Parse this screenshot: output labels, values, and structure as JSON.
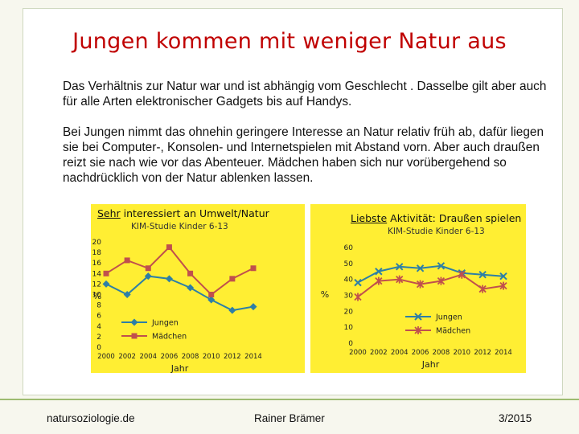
{
  "slide": {
    "title": "Jungen kommen mit weniger Natur aus",
    "paragraph1": "Das Verhältnis zur Natur war und ist abhängig vom Geschlecht . Dasselbe gilt aber auch für alle Arten elektronischer Gadgets bis auf Handys.",
    "paragraph2": "Bei Jungen nimmt das ohnehin geringere Interesse an Natur relativ früh ab, dafür liegen sie bei Computer-, Konsolen- und Internetspielen mit Abstand vorn. Aber auch draußen reizt sie nach wie vor das Abenteuer. Mädchen haben sich nur vorübergehend so nachdrücklich von der Natur ablenken lassen."
  },
  "footer": {
    "left": "natursoziologie.de",
    "center": "Rainer Brämer",
    "right": "3/2015"
  },
  "colors": {
    "title": "#c00000",
    "chart_bg": "#ffee33",
    "jungen": "#2e7fa6",
    "maedchen": "#c0504d",
    "footer_line": "#9dbb70"
  },
  "chart_data": [
    {
      "type": "line",
      "title_underlined": "Sehr",
      "title_rest": " interessiert an Umwelt/Natur",
      "subtitle": "KIM-Studie Kinder 6-13",
      "xlabel": "Jahr",
      "ylabel": "%",
      "xlim": [
        2000,
        2014
      ],
      "ylim": [
        0,
        20
      ],
      "x_ticks": [
        2000,
        2002,
        2004,
        2006,
        2008,
        2010,
        2012,
        2014
      ],
      "y_ticks": [
        0,
        2,
        4,
        6,
        8,
        10,
        12,
        14,
        16,
        18,
        20
      ],
      "legend_position": "center-left",
      "series": [
        {
          "name": "Jungen",
          "marker": "diamond",
          "x": [
            2000,
            2002,
            2004,
            2006,
            2008,
            2010,
            2012,
            2014
          ],
          "values": [
            12,
            10,
            13.5,
            13,
            11.3,
            9,
            7,
            7.7
          ]
        },
        {
          "name": "Mädchen",
          "marker": "square",
          "x": [
            2000,
            2002,
            2004,
            2006,
            2008,
            2010,
            2012,
            2014
          ],
          "values": [
            14,
            16.5,
            15,
            19,
            14,
            10,
            13,
            15
          ]
        }
      ]
    },
    {
      "type": "line",
      "title_underlined": "Liebste",
      "title_rest": " Aktivität: Draußen spielen",
      "subtitle": "KIM-Studie Kinder 6-13",
      "xlabel": "Jahr",
      "ylabel": "%",
      "xlim": [
        2000,
        2014
      ],
      "ylim": [
        0,
        60
      ],
      "x_ticks": [
        2000,
        2002,
        2004,
        2006,
        2008,
        2010,
        2012,
        2014
      ],
      "y_ticks": [
        0,
        10,
        20,
        30,
        40,
        50,
        60
      ],
      "legend_position": "center-right",
      "series": [
        {
          "name": "Jungen",
          "marker": "x",
          "x": [
            2000,
            2002,
            2004,
            2006,
            2008,
            2010,
            2012,
            2014
          ],
          "values": [
            38,
            45,
            48,
            47,
            48.5,
            44,
            43,
            42
          ]
        },
        {
          "name": "Mädchen",
          "marker": "star",
          "x": [
            2000,
            2002,
            2004,
            2006,
            2008,
            2010,
            2012,
            2014
          ],
          "values": [
            29,
            39,
            40,
            37,
            39,
            43,
            34,
            36
          ]
        }
      ]
    }
  ]
}
